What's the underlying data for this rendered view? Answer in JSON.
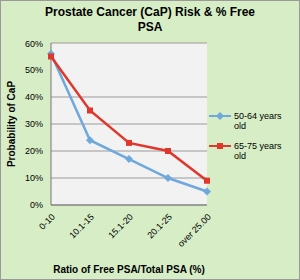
{
  "chart_data": {
    "type": "line",
    "title": "Prostate Cancer (CaP) Risk & % Free PSA",
    "x_label": "Ratio of Free PSA/Total PSA (%)",
    "y_label": "Probability of CaP",
    "categories": [
      "0-10",
      "10.1-15",
      "15.1-20",
      "20.1-25",
      "over 25.00"
    ],
    "series": [
      {
        "name": "50-64 years old",
        "color": "#6fa8dc",
        "marker": "diamond",
        "values": [
          56,
          24,
          17,
          10,
          5
        ]
      },
      {
        "name": "65-75 years old",
        "color": "#e0362c",
        "marker": "square",
        "values": [
          55,
          35,
          23,
          20,
          9
        ]
      }
    ],
    "ylim": [
      0,
      60
    ],
    "yticks": [
      {
        "value": 0,
        "label": "0%"
      },
      {
        "value": 10,
        "label": "10%"
      },
      {
        "value": 20,
        "label": "20%"
      },
      {
        "value": 30,
        "label": "30%"
      },
      {
        "value": 40,
        "label": "40%"
      },
      {
        "value": 50,
        "label": "50%"
      },
      {
        "value": 60,
        "label": "60%"
      }
    ],
    "grid": true,
    "legend": "right"
  }
}
